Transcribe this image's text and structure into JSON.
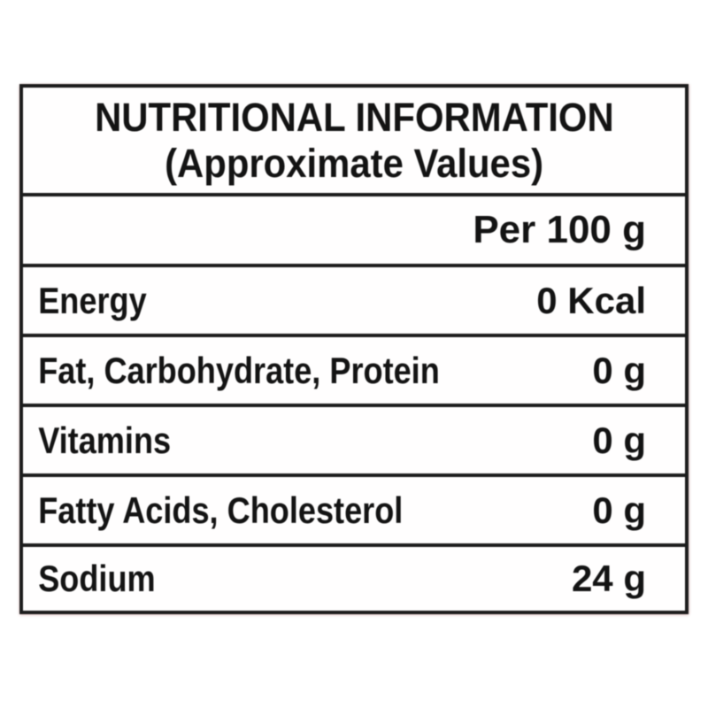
{
  "label": {
    "title_line1": "NUTRITIONAL INFORMATION",
    "title_line2": "(Approximate Values)",
    "column_header": "Per 100 g",
    "rows": [
      {
        "name": "Energy",
        "value": "0 Kcal"
      },
      {
        "name": "Fat, Carbohydrate, Protein",
        "value": "0 g"
      },
      {
        "name": "Vitamins",
        "value": "0 g"
      },
      {
        "name": "Fatty Acids, Cholesterol",
        "value": "0 g"
      },
      {
        "name": "Sodium",
        "value": "24 g"
      }
    ],
    "colors": {
      "border": "#1c1c1c",
      "text": "#131313",
      "background": "#ffffff"
    }
  }
}
